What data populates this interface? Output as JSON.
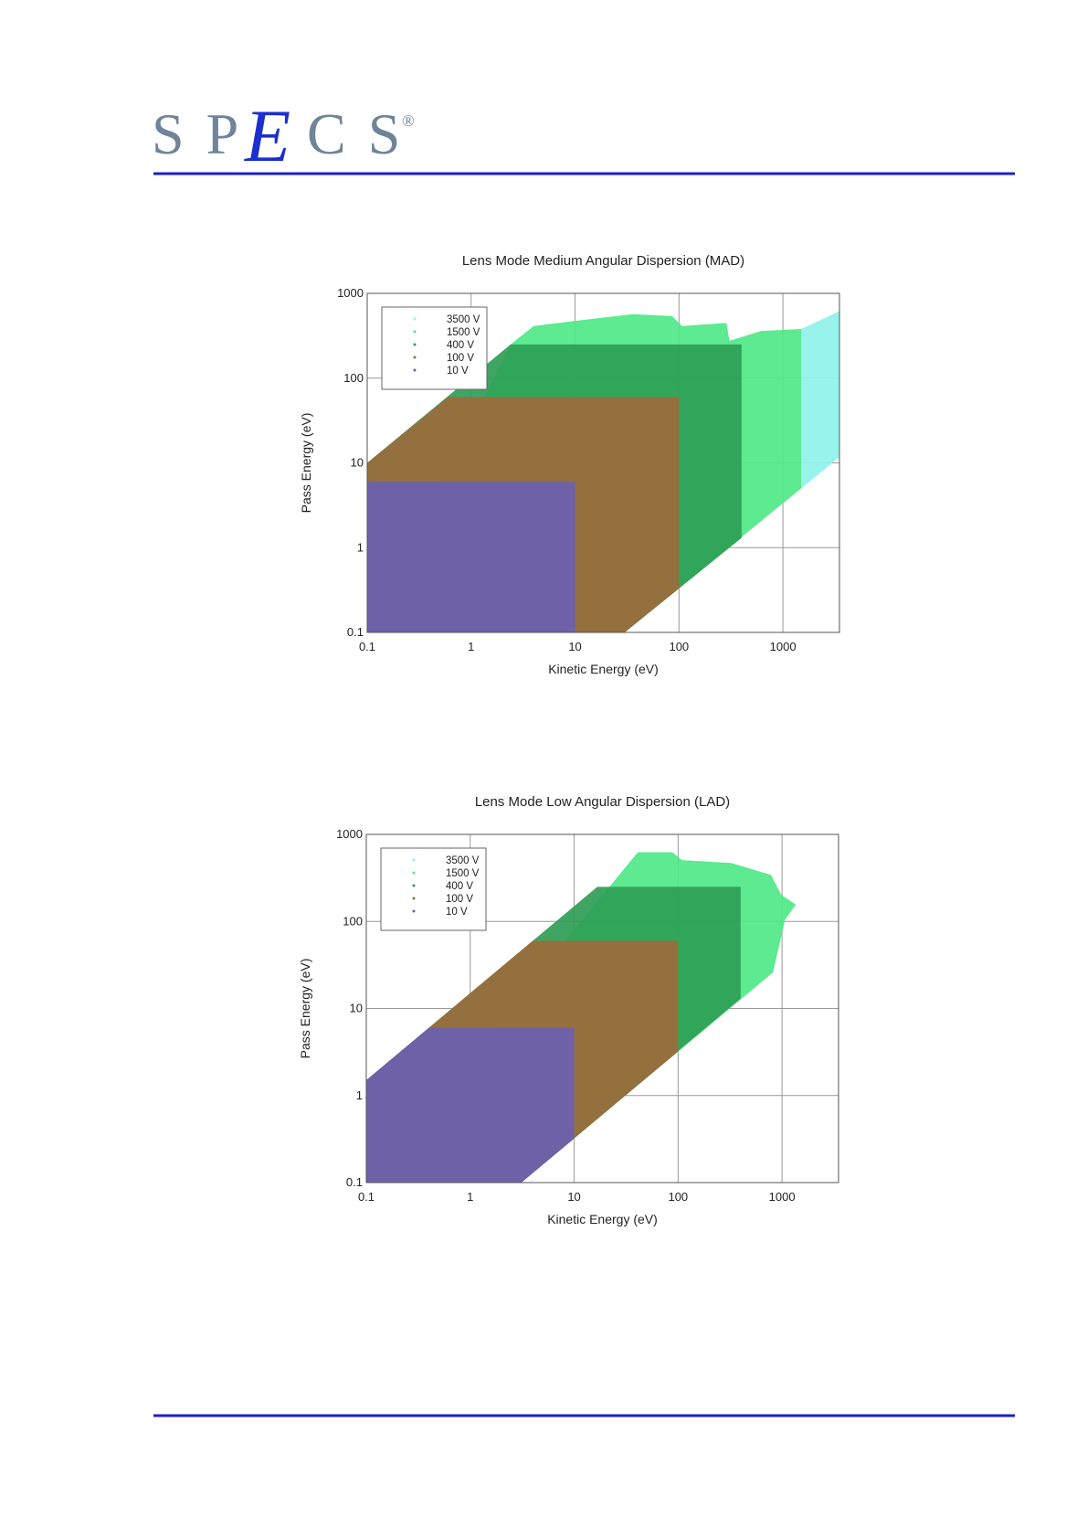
{
  "header": {
    "logo": [
      "S P",
      "E",
      "C S"
    ],
    "registered": "®"
  },
  "chart_data": [
    {
      "type": "area",
      "title": "Lens Mode Medium Angular Dispersion (MAD)",
      "x_label": "Kinetic Energy (eV)",
      "y_label": "Pass Energy (eV)",
      "log_x": true,
      "log_y": true,
      "grid": true,
      "legend": "upper left",
      "xlim": [
        0.1,
        3500
      ],
      "ylim": [
        0.1,
        1000
      ],
      "xticks": [
        0.1,
        1,
        10,
        100,
        1000
      ],
      "yticks": [
        0.1,
        1,
        10,
        100,
        1000
      ],
      "series": [
        {
          "name": "3500 V",
          "color": "#8ef2ea",
          "x": [
            1500,
            3500,
            3500,
            1500
          ],
          "values": [
            5,
            11.7,
            616,
            380
          ]
        },
        {
          "name": "1500 V",
          "color": "#4fe887",
          "x": [
            0.1,
            30,
            1500,
            1500,
            617,
            306,
            286,
            107,
            86,
            36,
            9.6,
            4,
            2.4
          ],
          "values": [
            0.1,
            0.1,
            5,
            380,
            360,
            275,
            447,
            412,
            539,
            569,
            471,
            412,
            250
          ]
        },
        {
          "name": "400 V",
          "color": "#2e9e55",
          "x": [
            0.1,
            30,
            400,
            400,
            2.4,
            0.1
          ],
          "values": [
            0.1,
            0.1,
            1.3,
            250,
            250,
            10
          ]
        },
        {
          "name": "100 V",
          "color": "#9c6b3c",
          "x": [
            0.1,
            30,
            100,
            100,
            0.6,
            0.1
          ],
          "values": [
            0.1,
            0.1,
            0.33,
            60,
            60,
            10
          ]
        },
        {
          "name": "10 V",
          "color": "#6b5fb0",
          "x": [
            0.1,
            10,
            10,
            0.1
          ],
          "values": [
            0.1,
            0.1,
            6,
            6
          ]
        }
      ]
    },
    {
      "type": "area",
      "title": "Lens Mode Low Angular Dispersion (LAD)",
      "x_label": "Kinetic Energy (eV)",
      "y_label": "Pass Energy (eV)",
      "log_x": true,
      "log_y": true,
      "grid": true,
      "legend": "upper left",
      "xlim": [
        0.1,
        3500
      ],
      "ylim": [
        0.1,
        1000
      ],
      "xticks": [
        0.1,
        1,
        10,
        100,
        1000
      ],
      "yticks": [
        0.1,
        1,
        10,
        100,
        1000
      ],
      "series": [
        {
          "name": "3500 V",
          "color": "#8ef2ea",
          "x": [],
          "values": []
        },
        {
          "name": "1500 V",
          "color": "#4fe887",
          "x": [
            0.1,
            3.1,
            820,
            1070,
            1360,
            980,
            785,
            327,
            109,
            88,
            41
          ],
          "values": [
            0.1,
            0.1,
            26,
            105,
            156,
            203,
            342,
            468,
            507,
            624,
            624
          ]
        },
        {
          "name": "400 V",
          "color": "#2e9e55",
          "x": [
            0.1,
            3.1,
            400,
            400,
            16.7,
            0.1
          ],
          "values": [
            0.1,
            0.1,
            13,
            250,
            250,
            1.5
          ]
        },
        {
          "name": "100 V",
          "color": "#9c6b3c",
          "x": [
            0.1,
            3.1,
            100,
            100,
            4,
            0.1
          ],
          "values": [
            0.1,
            0.1,
            3.2,
            60,
            60,
            1.5
          ]
        },
        {
          "name": "10 V",
          "color": "#6b5fb0",
          "x": [
            0.1,
            3.1,
            10,
            10,
            0.4,
            0.1
          ],
          "values": [
            0.1,
            0.1,
            0.32,
            6,
            6,
            1.5
          ]
        }
      ]
    }
  ]
}
